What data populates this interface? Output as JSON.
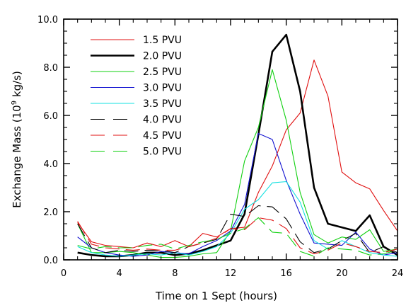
{
  "chart_data": {
    "type": "line",
    "title": "",
    "xlabel": "Time on 1 Sept (hours)",
    "ylabel": {
      "prefix": "Exchange Mass  (10",
      "sup": "9",
      "suffix": " kg/s)"
    },
    "xlim": [
      0,
      24
    ],
    "ylim": [
      0,
      10
    ],
    "xticks": [
      0,
      4,
      8,
      12,
      16,
      20,
      24
    ],
    "xtick_labels": [
      "0",
      "4",
      "8",
      "12",
      "16",
      "20",
      "24"
    ],
    "yticks": [
      0,
      2,
      4,
      6,
      8,
      10
    ],
    "ytick_labels": [
      "0.0",
      "2.0",
      "4.0",
      "6.0",
      "8.0",
      "10.0"
    ],
    "grid": false,
    "legend_position": "top-left",
    "series": [
      {
        "name": "1.5 PVU",
        "color": "#e01010",
        "dash": "solid",
        "thick": false,
        "x": [
          1,
          2,
          3,
          4,
          5,
          6,
          7,
          8,
          9,
          10,
          11,
          12,
          13,
          14,
          15,
          16,
          17,
          18,
          19,
          20,
          21,
          22,
          23,
          24
        ],
        "y": [
          1.55,
          0.75,
          0.6,
          0.55,
          0.5,
          0.7,
          0.55,
          0.8,
          0.55,
          1.1,
          0.95,
          1.3,
          1.35,
          2.8,
          3.9,
          5.4,
          6.1,
          8.3,
          6.8,
          3.65,
          3.2,
          2.95,
          2.05,
          1.2
        ]
      },
      {
        "name": "2.0 PVU",
        "color": "#000000",
        "dash": "solid",
        "thick": true,
        "x": [
          1,
          2,
          3,
          4,
          5,
          6,
          7,
          8,
          9,
          10,
          11,
          12,
          13,
          14,
          15,
          16,
          17,
          18,
          19,
          20,
          21,
          22,
          23,
          24
        ],
        "y": [
          0.3,
          0.2,
          0.15,
          0.15,
          0.2,
          0.3,
          0.3,
          0.2,
          0.25,
          0.4,
          0.6,
          0.8,
          1.9,
          5.2,
          8.65,
          9.35,
          7.0,
          3.0,
          1.5,
          1.35,
          1.2,
          1.85,
          0.55,
          0.2
        ]
      },
      {
        "name": "2.5 PVU",
        "color": "#10d010",
        "dash": "solid",
        "thick": false,
        "x": [
          1,
          2,
          3,
          4,
          5,
          6,
          7,
          8,
          9,
          10,
          11,
          12,
          13,
          14,
          15,
          16,
          17,
          18,
          19,
          20,
          21,
          22,
          23,
          24
        ],
        "y": [
          1.5,
          0.3,
          0.3,
          0.35,
          0.3,
          0.2,
          0.1,
          0.1,
          0.15,
          0.25,
          0.3,
          1.2,
          4.1,
          5.5,
          7.9,
          5.8,
          2.8,
          1.05,
          0.7,
          0.95,
          0.85,
          1.25,
          0.35,
          0.45
        ]
      },
      {
        "name": "3.0 PVU",
        "color": "#1010d0",
        "dash": "solid",
        "thick": false,
        "x": [
          1,
          2,
          3,
          4,
          5,
          6,
          7,
          8,
          9,
          10,
          11,
          12,
          13,
          14,
          15,
          16,
          17,
          18,
          19,
          20,
          21,
          22,
          23,
          24
        ],
        "y": [
          0.95,
          0.5,
          0.3,
          0.2,
          0.15,
          0.2,
          0.35,
          0.3,
          0.25,
          0.55,
          0.8,
          1.2,
          2.3,
          5.25,
          5.0,
          3.3,
          1.9,
          0.7,
          0.65,
          0.6,
          1.15,
          0.45,
          0.2,
          0.3
        ]
      },
      {
        "name": "3.5 PVU",
        "color": "#10e0e0",
        "dash": "solid",
        "thick": false,
        "x": [
          1,
          2,
          3,
          4,
          5,
          6,
          7,
          8,
          9,
          10,
          11,
          12,
          13,
          14,
          15,
          16,
          17,
          18,
          19,
          20,
          21,
          22,
          23,
          24
        ],
        "y": [
          0.55,
          0.3,
          0.2,
          0.15,
          0.2,
          0.25,
          0.2,
          0.3,
          0.2,
          0.35,
          0.55,
          1.1,
          2.1,
          2.5,
          3.2,
          3.25,
          2.4,
          0.8,
          0.45,
          0.8,
          0.55,
          0.3,
          0.2,
          0.15
        ]
      },
      {
        "name": "4.0 PVU",
        "color": "#000000",
        "dash": "20 9",
        "thick": false,
        "x": [
          1,
          2,
          3,
          4,
          5,
          6,
          7,
          8,
          9,
          10,
          11,
          12,
          13,
          14,
          15,
          16,
          17,
          18,
          19,
          20,
          21,
          22,
          23,
          24
        ],
        "y": [
          1.5,
          0.5,
          0.3,
          0.4,
          0.35,
          0.4,
          0.4,
          0.3,
          0.55,
          0.7,
          0.85,
          1.9,
          1.8,
          2.25,
          2.2,
          1.7,
          0.75,
          0.3,
          0.45,
          0.8,
          1.1,
          0.3,
          0.55,
          0.3
        ]
      },
      {
        "name": "4.5 PVU",
        "color": "#e01010",
        "dash": "20 9",
        "thick": false,
        "x": [
          1,
          2,
          3,
          4,
          5,
          6,
          7,
          8,
          9,
          10,
          11,
          12,
          13,
          14,
          15,
          16,
          17,
          18,
          19,
          20,
          21,
          22,
          23,
          24
        ],
        "y": [
          1.6,
          0.65,
          0.5,
          0.45,
          0.4,
          0.45,
          0.4,
          0.4,
          0.55,
          0.7,
          0.9,
          1.3,
          1.25,
          1.75,
          1.65,
          1.3,
          0.5,
          0.25,
          0.4,
          0.7,
          0.55,
          0.35,
          0.3,
          0.45
        ]
      },
      {
        "name": "5.0 PVU",
        "color": "#10d010",
        "dash": "20 9",
        "thick": false,
        "x": [
          1,
          2,
          3,
          4,
          5,
          6,
          7,
          8,
          9,
          10,
          11,
          12,
          13,
          14,
          15,
          16,
          17,
          18,
          19,
          20,
          21,
          22,
          23,
          24
        ],
        "y": [
          0.6,
          0.45,
          0.55,
          0.5,
          0.5,
          0.6,
          0.65,
          0.45,
          0.6,
          0.75,
          0.85,
          1.1,
          1.3,
          1.75,
          1.15,
          1.1,
          0.35,
          0.15,
          0.5,
          0.45,
          0.4,
          0.2,
          0.25,
          0.4
        ]
      }
    ]
  }
}
